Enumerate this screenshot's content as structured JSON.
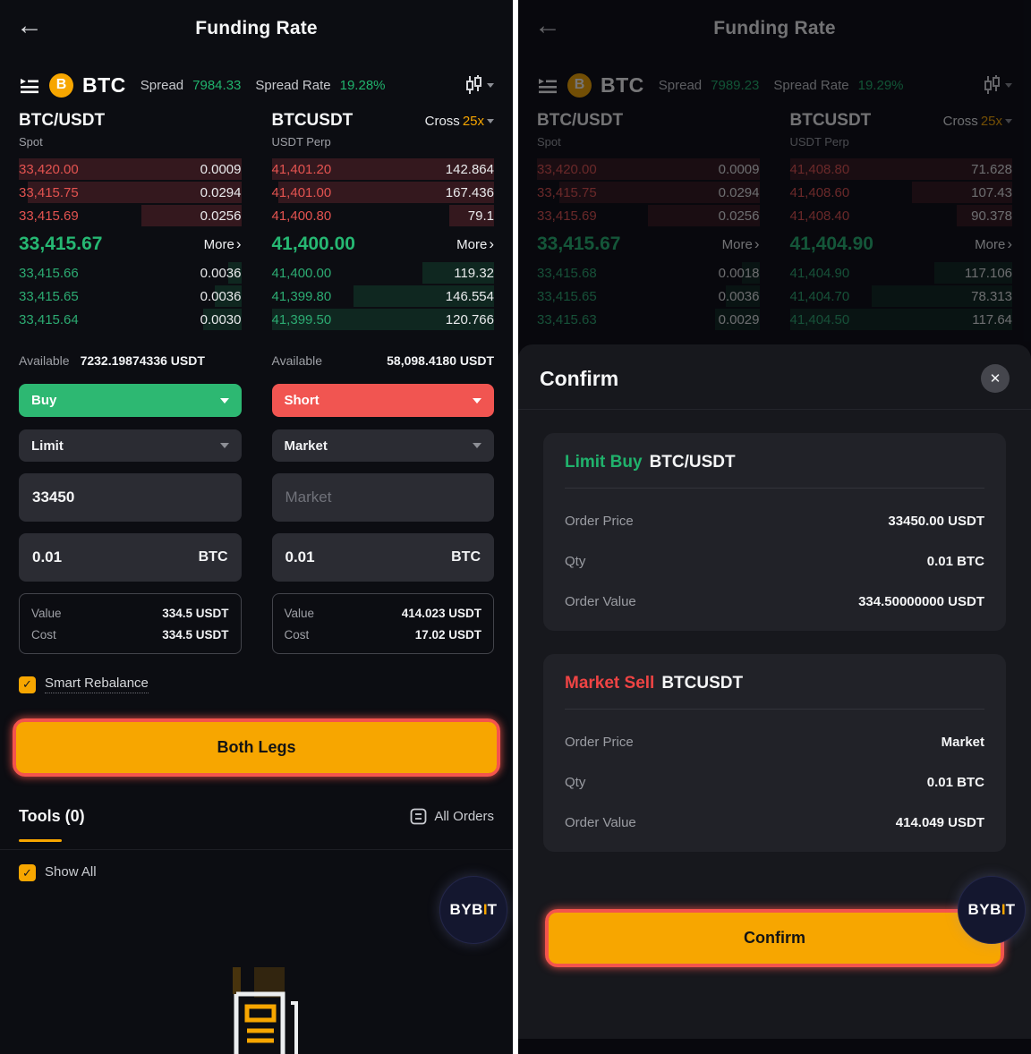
{
  "colors": {
    "accent_orange": "#f7a600",
    "green": "#20b26c",
    "red": "#ef4f4b",
    "highlight_ring": "#f4544c"
  },
  "left": {
    "header": {
      "title": "Funding Rate"
    },
    "pair_bar": {
      "symbol": "BTC",
      "spread_label": "Spread",
      "spread_value": "7984.33",
      "rate_label": "Spread Rate",
      "rate_value": "19.28%"
    },
    "columns": {
      "spot": {
        "name": "BTC/USDT",
        "type": "Spot"
      },
      "perp": {
        "name": "BTCUSDT",
        "type": "USDT Perp",
        "margin_mode": "Cross",
        "leverage": "25x"
      }
    },
    "book": {
      "more_label": "More",
      "more_chevron": "›",
      "spot_asks": [
        {
          "price": "33,420.00",
          "qty": "0.0009",
          "depth": 100
        },
        {
          "price": "33,415.75",
          "qty": "0.0294",
          "depth": 96
        },
        {
          "price": "33,415.69",
          "qty": "0.0256",
          "depth": 45
        }
      ],
      "perp_asks": [
        {
          "price": "41,401.20",
          "qty": "142.864",
          "depth": 100
        },
        {
          "price": "41,401.00",
          "qty": "167.436",
          "depth": 97
        },
        {
          "price": "41,400.80",
          "qty": "79.1",
          "depth": 20
        }
      ],
      "spot_mid": "33,415.67",
      "perp_mid": "41,400.00",
      "spot_bids": [
        {
          "price": "33,415.66",
          "qty": "0.0036",
          "depth": 6
        },
        {
          "price": "33,415.65",
          "qty": "0.0036",
          "depth": 12
        },
        {
          "price": "33,415.64",
          "qty": "0.0030",
          "depth": 17
        }
      ],
      "perp_bids": [
        {
          "price": "41,400.00",
          "qty": "119.32",
          "depth": 32
        },
        {
          "price": "41,399.80",
          "qty": "146.554",
          "depth": 63
        },
        {
          "price": "41,399.50",
          "qty": "120.766",
          "depth": 100
        }
      ]
    },
    "trade": {
      "available_label": "Available",
      "spot_available": "7232.19874336 USDT",
      "perp_available": "58,098.4180 USDT",
      "spot_side": "Buy",
      "perp_side": "Short",
      "spot_type": "Limit",
      "perp_type": "Market",
      "spot_price": "33450",
      "perp_price_placeholder": "Market",
      "spot_qty": "0.01",
      "perp_qty": "0.01",
      "qty_unit": "BTC",
      "value_label": "Value",
      "cost_label": "Cost",
      "spot_value": "334.5 USDT",
      "spot_cost": "334.5 USDT",
      "perp_value": "414.023 USDT",
      "perp_cost": "17.02 USDT",
      "smart_rebalance_label": "Smart Rebalance",
      "smart_rebalance_check": "✓",
      "submit_label": "Both Legs"
    },
    "tools": {
      "title": "Tools (0)",
      "all_orders_label": "All Orders",
      "show_all_label": "Show All",
      "show_all_check": "✓"
    },
    "logo": {
      "part1": "BYB",
      "accent": "I",
      "part2": "T"
    }
  },
  "right": {
    "header": {
      "title": "Funding Rate"
    },
    "pair_bar": {
      "symbol": "BTC",
      "spread_label": "Spread",
      "spread_value": "7989.23",
      "rate_label": "Spread Rate",
      "rate_value": "19.29%"
    },
    "columns": {
      "spot": {
        "name": "BTC/USDT",
        "type": "Spot"
      },
      "perp": {
        "name": "BTCUSDT",
        "type": "USDT Perp",
        "margin_mode": "Cross",
        "leverage": "25x"
      }
    },
    "book": {
      "more_label": "More",
      "more_chevron": "›",
      "spot_asks": [
        {
          "price": "33,420.00",
          "qty": "0.0009",
          "depth": 100
        },
        {
          "price": "33,415.75",
          "qty": "0.0294",
          "depth": 90
        },
        {
          "price": "33,415.69",
          "qty": "0.0256",
          "depth": 50
        }
      ],
      "perp_asks": [
        {
          "price": "41,408.80",
          "qty": "71.628",
          "depth": 100
        },
        {
          "price": "41,408.60",
          "qty": "107.43",
          "depth": 45
        },
        {
          "price": "41,408.40",
          "qty": "90.378",
          "depth": 25
        }
      ],
      "spot_mid": "33,415.67",
      "perp_mid": "41,404.90",
      "spot_bids": [
        {
          "price": "33,415.68",
          "qty": "0.0018",
          "depth": 8
        },
        {
          "price": "33,415.65",
          "qty": "0.0036",
          "depth": 15
        },
        {
          "price": "33,415.63",
          "qty": "0.0029",
          "depth": 20
        }
      ],
      "perp_bids": [
        {
          "price": "41,404.90",
          "qty": "117.106",
          "depth": 35
        },
        {
          "price": "41,404.70",
          "qty": "78.313",
          "depth": 63
        },
        {
          "price": "41,404.50",
          "qty": "117.64",
          "depth": 100
        }
      ]
    },
    "modal": {
      "title": "Confirm",
      "close_glyph": "✕",
      "orders": [
        {
          "side": "Limit Buy",
          "symbol": "BTC/USDT",
          "rows": [
            {
              "label": "Order Price",
              "value": "33450.00 USDT"
            },
            {
              "label": "Qty",
              "value": "0.01 BTC"
            },
            {
              "label": "Order Value",
              "value": "334.50000000 USDT"
            }
          ]
        },
        {
          "side": "Market Sell",
          "symbol": "BTCUSDT",
          "rows": [
            {
              "label": "Order Price",
              "value": "Market"
            },
            {
              "label": "Qty",
              "value": "0.01 BTC"
            },
            {
              "label": "Order Value",
              "value": "414.049 USDT"
            }
          ]
        }
      ],
      "confirm_label": "Confirm"
    },
    "logo": {
      "part1": "BYB",
      "accent": "I",
      "part2": "T"
    }
  }
}
